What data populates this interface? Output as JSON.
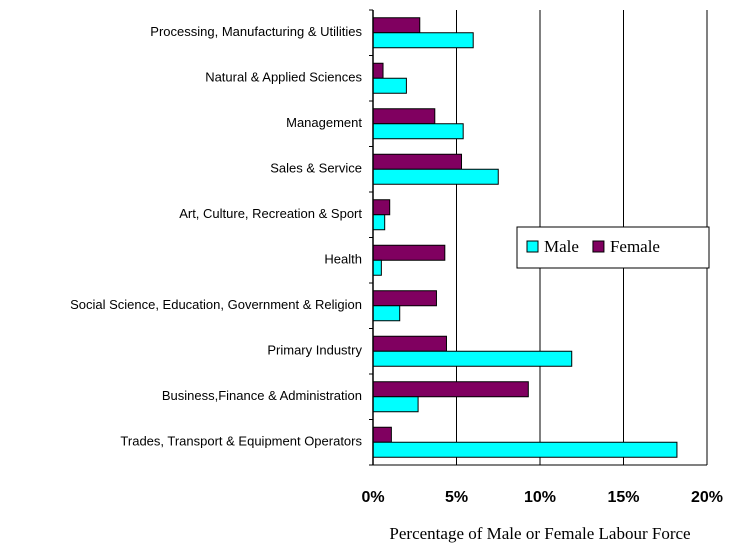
{
  "chart_data": {
    "type": "hbar",
    "x_label": "Percentage of Male or Female Labour Force",
    "categories": [
      "Processing, Manufacturing & Utilities",
      "Natural & Applied Sciences",
      "Management",
      "Sales & Service",
      "Art, Culture, Recreation & Sport",
      "Health",
      "Social Science, Education, Government & Religion",
      "Primary Industry",
      "Business,Finance & Administration",
      "Trades, Transport & Equipment Operators"
    ],
    "series": [
      {
        "name": "Male",
        "color": "#00ffff",
        "values": [
          6.0,
          2.0,
          5.4,
          7.5,
          0.7,
          0.5,
          1.6,
          11.9,
          2.7,
          18.2
        ]
      },
      {
        "name": "Female",
        "color": "#800060",
        "values": [
          2.8,
          0.6,
          3.7,
          5.3,
          1.0,
          4.3,
          3.8,
          4.4,
          9.3,
          1.1
        ]
      }
    ],
    "xlim": [
      0,
      20
    ],
    "xticks": [
      {
        "value": 0,
        "label": "0%"
      },
      {
        "value": 5,
        "label": "5%"
      },
      {
        "value": 10,
        "label": "10%"
      },
      {
        "value": 15,
        "label": "15%"
      },
      {
        "value": 20,
        "label": "20%"
      }
    ],
    "grid": true
  }
}
